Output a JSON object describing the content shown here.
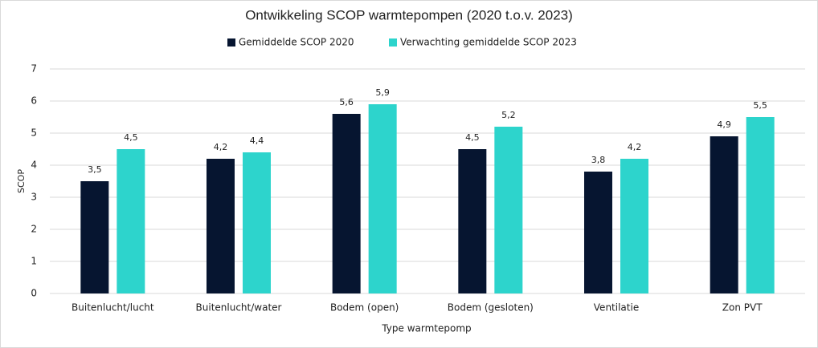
{
  "chart_data": {
    "type": "bar",
    "title": "Ontwikkeling SCOP warmtepompen (2020 t.o.v. 2023)",
    "x_label": "Type warmtepomp",
    "y_label": "SCOP",
    "categories": [
      "Buitenlucht/lucht",
      "Buitenlucht/water",
      "Bodem (open)",
      "Bodem (gesloten)",
      "Ventilatie",
      "Zon PVT"
    ],
    "series": [
      {
        "name": "Gemiddelde SCOP 2020",
        "color": "#061530",
        "values": [
          3.5,
          4.2,
          5.6,
          4.5,
          3.8,
          4.9
        ],
        "value_labels": [
          "3,5",
          "4,2",
          "5,6",
          "4,5",
          "3,8",
          "4,9"
        ]
      },
      {
        "name": "Verwachting gemiddelde SCOP 2023",
        "color": "#2dd4cc",
        "values": [
          4.5,
          4.4,
          5.9,
          5.2,
          4.2,
          5.5
        ],
        "value_labels": [
          "4,5",
          "4,4",
          "5,9",
          "5,2",
          "4,2",
          "5,5"
        ]
      }
    ],
    "ylim": [
      0,
      7
    ],
    "yticks": [
      0,
      1,
      2,
      3,
      4,
      5,
      6,
      7
    ],
    "grid": true,
    "legend": "top"
  }
}
